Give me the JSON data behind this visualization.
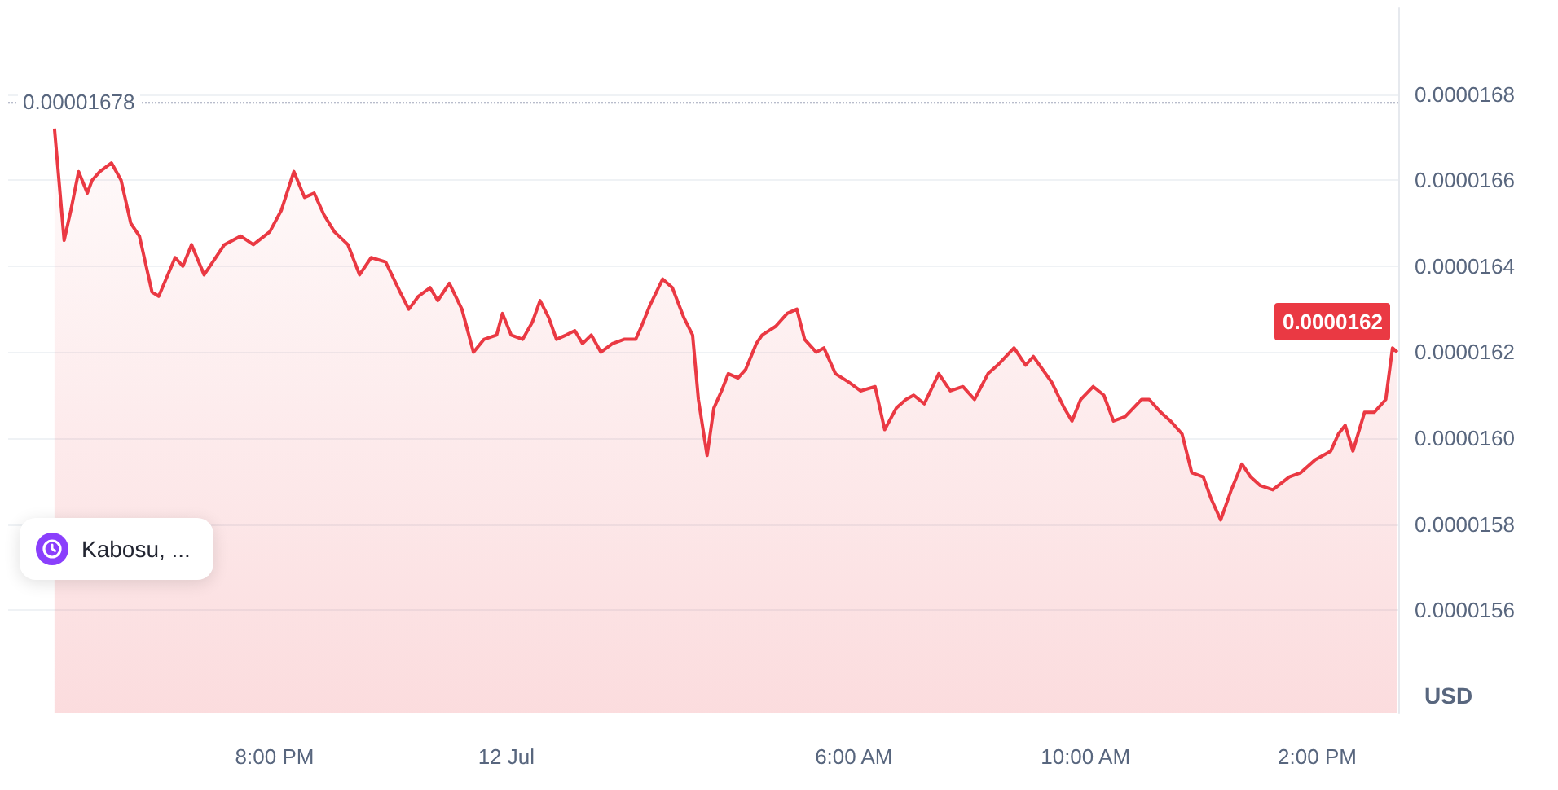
{
  "chart_data": {
    "type": "area",
    "ylabel": "USD",
    "marker": "none",
    "grid": "y",
    "annotations": [
      "0.0000162",
      "Kabosu, ..."
    ],
    "xlim": [
      "--07-11T15:24",
      "--07-12T15:24"
    ],
    "ylim": [
      1.536e-05,
      1.7e-05
    ],
    "xticks": [
      {
        "value": "--07-11T20:00",
        "label": "8:00 PM"
      },
      {
        "value": "--07-12T00:00",
        "label": "12 Jul"
      },
      {
        "value": "--07-12T06:00",
        "label": "6:00 AM"
      },
      {
        "value": "--07-12T10:00",
        "label": "10:00 AM"
      },
      {
        "value": "--07-12T14:00",
        "label": "2:00 PM"
      }
    ],
    "yticks": [
      {
        "value": 1.56e-05,
        "label": "0.0000156"
      },
      {
        "value": 1.58e-05,
        "label": "0.0000158"
      },
      {
        "value": 1.6e-05,
        "label": "0.0000160"
      },
      {
        "value": 1.62e-05,
        "label": "0.0000162"
      },
      {
        "value": 1.64e-05,
        "label": "0.0000164"
      },
      {
        "value": 1.66e-05,
        "label": "0.0000166"
      },
      {
        "value": 1.68e-05,
        "label": "0.0000168"
      }
    ],
    "ref_lines": [
      {
        "axis": "y",
        "value": 1.678e-05,
        "label": "0.00001678",
        "color": "#a1a7bb",
        "line_style": "dotted"
      }
    ],
    "series": [
      {
        "color": "#ea3943",
        "x": [
          "--07-11T16:12",
          "--07-11T16:22",
          "--07-11T16:29",
          "--07-11T16:37",
          "--07-11T16:46",
          "--07-11T16:51",
          "--07-11T16:59",
          "--07-11T17:11",
          "--07-11T17:21",
          "--07-11T17:31",
          "--07-11T17:40",
          "--07-11T17:53",
          "--07-11T18:00",
          "--07-11T18:17",
          "--07-11T18:25",
          "--07-11T18:34",
          "--07-11T18:47",
          "--07-11T18:56",
          "--07-11T19:08",
          "--07-11T19:25",
          "--07-11T19:38",
          "--07-11T19:55",
          "--07-11T20:07",
          "--07-11T20:20",
          "--07-11T20:31",
          "--07-11T20:41",
          "--07-11T20:51",
          "--07-11T21:02",
          "--07-11T21:16",
          "--07-11T21:28",
          "--07-11T21:40",
          "--07-11T21:55",
          "--07-11T22:10",
          "--07-11T22:19",
          "--07-11T22:29",
          "--07-11T22:41",
          "--07-11T22:49",
          "--07-11T23:01",
          "--07-11T23:14",
          "--07-11T23:26",
          "--07-11T23:37",
          "--07-11T23:50",
          "--07-11T23:56",
          "--07-12T00:05",
          "--07-12T00:17",
          "--07-12T00:27",
          "--07-12T00:35",
          "--07-12T00:44",
          "--07-12T00:52",
          "--07-12T01:02",
          "--07-12T01:11",
          "--07-12T01:19",
          "--07-12T01:28",
          "--07-12T01:38",
          "--07-12T01:50",
          "--07-12T02:02",
          "--07-12T02:14",
          "--07-12T02:20",
          "--07-12T02:29",
          "--07-12T02:42",
          "--07-12T02:52",
          "--07-12T03:04",
          "--07-12T03:13",
          "--07-12T03:19",
          "--07-12T03:28",
          "--07-12T03:35",
          "--07-12T03:43",
          "--07-12T03:50",
          "--07-12T04:00",
          "--07-12T04:08",
          "--07-12T04:19",
          "--07-12T04:25",
          "--07-12T04:39",
          "--07-12T04:51",
          "--07-12T05:01",
          "--07-12T05:09",
          "--07-12T05:21",
          "--07-12T05:29",
          "--07-12T05:41",
          "--07-12T05:55",
          "--07-12T06:07",
          "--07-12T06:22",
          "--07-12T06:32",
          "--07-12T06:44",
          "--07-12T06:54",
          "--07-12T07:02",
          "--07-12T07:13",
          "--07-12T07:28",
          "--07-12T07:40",
          "--07-12T07:53",
          "--07-12T08:05",
          "--07-12T08:19",
          "--07-12T08:29",
          "--07-12T08:46",
          "--07-12T08:58",
          "--07-12T09:06",
          "--07-12T09:25",
          "--07-12T09:38",
          "--07-12T09:46",
          "--07-12T09:55",
          "--07-12T10:08",
          "--07-12T10:19",
          "--07-12T10:29",
          "--07-12T10:41",
          "--07-12T10:58",
          "--07-12T11:06",
          "--07-12T11:18",
          "--07-12T11:28",
          "--07-12T11:40",
          "--07-12T11:50",
          "--07-12T12:02",
          "--07-12T12:10",
          "--07-12T12:20",
          "--07-12T12:31",
          "--07-12T12:42",
          "--07-12T12:51",
          "--07-12T13:01",
          "--07-12T13:14",
          "--07-12T13:31",
          "--07-12T13:43",
          "--07-12T13:58",
          "--07-12T14:14",
          "--07-12T14:22",
          "--07-12T14:29",
          "--07-12T14:37",
          "--07-12T14:49",
          "--07-12T14:59",
          "--07-12T15:11",
          "--07-12T15:18",
          "--07-12T15:23"
        ],
        "values": [
          1.672e-05,
          1.646e-05,
          1.653e-05,
          1.662e-05,
          1.657e-05,
          1.66e-05,
          1.662e-05,
          1.664e-05,
          1.66e-05,
          1.65e-05,
          1.647e-05,
          1.634e-05,
          1.633e-05,
          1.642e-05,
          1.64e-05,
          1.645e-05,
          1.638e-05,
          1.641e-05,
          1.645e-05,
          1.647e-05,
          1.645e-05,
          1.648e-05,
          1.653e-05,
          1.662e-05,
          1.656e-05,
          1.657e-05,
          1.652e-05,
          1.648e-05,
          1.645e-05,
          1.638e-05,
          1.642e-05,
          1.641e-05,
          1.634e-05,
          1.63e-05,
          1.633e-05,
          1.635e-05,
          1.632e-05,
          1.636e-05,
          1.63e-05,
          1.62e-05,
          1.623e-05,
          1.624e-05,
          1.629e-05,
          1.624e-05,
          1.623e-05,
          1.627e-05,
          1.632e-05,
          1.628e-05,
          1.623e-05,
          1.624e-05,
          1.625e-05,
          1.622e-05,
          1.624e-05,
          1.62e-05,
          1.622e-05,
          1.623e-05,
          1.623e-05,
          1.626e-05,
          1.631e-05,
          1.637e-05,
          1.635e-05,
          1.628e-05,
          1.624e-05,
          1.609e-05,
          1.596e-05,
          1.607e-05,
          1.611e-05,
          1.615e-05,
          1.614e-05,
          1.616e-05,
          1.622e-05,
          1.624e-05,
          1.626e-05,
          1.629e-05,
          1.63e-05,
          1.623e-05,
          1.62e-05,
          1.621e-05,
          1.615e-05,
          1.613e-05,
          1.611e-05,
          1.612e-05,
          1.602e-05,
          1.607e-05,
          1.609e-05,
          1.61e-05,
          1.608e-05,
          1.615e-05,
          1.611e-05,
          1.612e-05,
          1.609e-05,
          1.615e-05,
          1.617e-05,
          1.621e-05,
          1.617e-05,
          1.619e-05,
          1.613e-05,
          1.607e-05,
          1.604e-05,
          1.609e-05,
          1.612e-05,
          1.61e-05,
          1.604e-05,
          1.605e-05,
          1.609e-05,
          1.609e-05,
          1.606e-05,
          1.604e-05,
          1.601e-05,
          1.592e-05,
          1.591e-05,
          1.586e-05,
          1.581e-05,
          1.588e-05,
          1.594e-05,
          1.591e-05,
          1.589e-05,
          1.588e-05,
          1.591e-05,
          1.592e-05,
          1.595e-05,
          1.597e-05,
          1.601e-05,
          1.603e-05,
          1.597e-05,
          1.606e-05,
          1.606e-05,
          1.609e-05,
          1.621e-05,
          1.62e-05
        ]
      }
    ]
  }
}
